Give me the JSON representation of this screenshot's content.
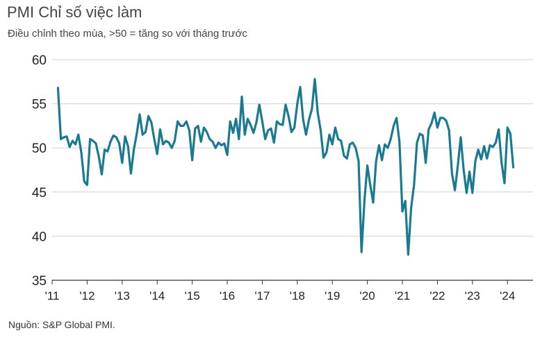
{
  "title": "PMI Chỉ số việc làm",
  "subtitle": "Điều chỉnh theo mùa, >50 = tăng so với tháng trước",
  "source": "Nguồn: S&P Global PMI.",
  "colors": {
    "line": "#1a7a91",
    "axis": "#333333",
    "grid": "#d0d0d0"
  },
  "chart_data": {
    "type": "line",
    "title": "PMI Chỉ số việc làm",
    "subtitle": "Điều chỉnh theo mùa, >50 = tăng so với tháng trước",
    "xlabel": "",
    "ylabel": "",
    "ylim": [
      35,
      60
    ],
    "yticks": [
      35,
      40,
      45,
      50,
      55,
      60
    ],
    "xticks": [
      "'11",
      "'12",
      "'13",
      "'14",
      "'15",
      "'16",
      "'17",
      "'18",
      "'19",
      "'20",
      "'21",
      "'22",
      "'23",
      "'24"
    ],
    "grid": "horizontal",
    "series": [
      {
        "start": "2011-03",
        "frequency": "monthly",
        "values": [
          56.8,
          51.0,
          51.2,
          51.3,
          50.1,
          50.8,
          50.4,
          51.5,
          49.5,
          46.2,
          45.8,
          51.0,
          50.8,
          50.5,
          49.0,
          47.0,
          49.8,
          49.6,
          50.7,
          51.4,
          51.2,
          50.5,
          48.3,
          51.3,
          50.2,
          47.1,
          49.8,
          51.6,
          53.8,
          51.5,
          51.8,
          53.6,
          52.9,
          51.0,
          49.3,
          52.1,
          50.4,
          50.8,
          50.6,
          50.0,
          50.8,
          53.0,
          52.5,
          52.5,
          53.0,
          52.0,
          48.6,
          52.2,
          52.5,
          50.7,
          52.3,
          51.8,
          51.0,
          50.7,
          50.0,
          50.6,
          50.3,
          50.5,
          49.2,
          53.0,
          51.7,
          53.3,
          51.0,
          55.8,
          51.5,
          53.3,
          52.6,
          51.7,
          52.9,
          54.9,
          53.0,
          51.0,
          52.0,
          52.2,
          50.6,
          53.0,
          52.7,
          52.6,
          54.9,
          53.6,
          51.8,
          52.3,
          55.0,
          56.9,
          53.2,
          51.5,
          53.2,
          54.4,
          57.8,
          54.0,
          52.0,
          48.9,
          49.5,
          51.5,
          50.4,
          52.3,
          51.0,
          50.8,
          49.1,
          48.8,
          50.4,
          50.6,
          50.0,
          48.5,
          38.2,
          44.0,
          48.0,
          45.8,
          43.8,
          48.5,
          50.3,
          48.6,
          50.4,
          50.0,
          51.0,
          52.5,
          53.4,
          50.7,
          42.8,
          44.0,
          37.9,
          43.2,
          45.8,
          50.6,
          51.6,
          51.4,
          48.3,
          52.1,
          52.8,
          54.0,
          52.3,
          53.4,
          53.4,
          53.1,
          52.0,
          47.1,
          45.2,
          48.0,
          51.2,
          47.5,
          44.9,
          47.3,
          44.9,
          48.5,
          49.8,
          48.7,
          50.2,
          48.8,
          50.3,
          50.1,
          50.6,
          52.1,
          48.3,
          46.0,
          52.3,
          51.6,
          47.8
        ]
      }
    ]
  }
}
